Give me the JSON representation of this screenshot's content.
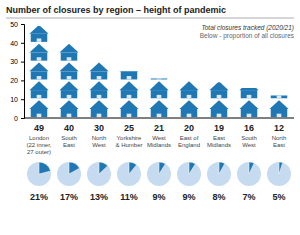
{
  "chart_data": {
    "type": "bar",
    "title": "Number of closures by region – height of pandemic",
    "annotations": [
      "Total closures tracked (2020/21)",
      "Below - proportion of all closures"
    ],
    "categories": [
      "London\n(22 inner,\n27 outer)",
      "South\nEast",
      "North\nWest",
      "Yorkshire\n& Humber",
      "West\nMidlands",
      "East of\nEngland",
      "East\nMidlands",
      "South\nWest",
      "North\nEast"
    ],
    "values": [
      49,
      40,
      30,
      25,
      21,
      20,
      19,
      16,
      12
    ],
    "data_labels": true,
    "percentages": [
      21,
      17,
      13,
      11,
      9,
      9,
      8,
      7,
      5
    ],
    "percentage_labels": [
      "21%",
      "17%",
      "13%",
      "11%",
      "9%",
      "9%",
      "8%",
      "7%",
      "5%"
    ],
    "ylim": [
      0,
      50
    ],
    "yticks": [
      0,
      10,
      20,
      30,
      40,
      50
    ],
    "grid": false
  }
}
